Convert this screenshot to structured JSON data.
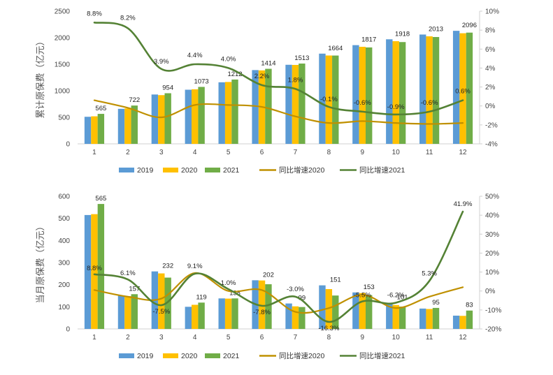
{
  "chart_data": [
    {
      "type": "bar",
      "ylabel": "累计原保费（亿元）",
      "ylim": [
        0,
        2500
      ],
      "y2lim": [
        -4,
        10
      ],
      "categories": [
        "1",
        "2",
        "3",
        "4",
        "5",
        "6",
        "7",
        "8",
        "9",
        "10",
        "11",
        "12"
      ],
      "y_ticks": [
        "0",
        "500",
        "1000",
        "1500",
        "2000",
        "2500"
      ],
      "y2_ticks": [
        "-4%",
        "-2%",
        "0%",
        "2%",
        "4%",
        "6%",
        "8%",
        "10%"
      ],
      "series": [
        {
          "name": "2019",
          "kind": "bar",
          "color": "#5B9BD5",
          "values": [
            510,
            660,
            930,
            1020,
            1160,
            1390,
            1490,
            1700,
            1860,
            1970,
            2060,
            2130
          ]
        },
        {
          "name": "2020",
          "kind": "bar",
          "color": "#FFC000",
          "values": [
            519,
            667,
            918,
            1028,
            1166,
            1384,
            1487,
            1665,
            1829,
            1935,
            2026,
            2084
          ]
        },
        {
          "name": "2021",
          "kind": "bar",
          "color": "#70AD47",
          "values": [
            565,
            722,
            954,
            1073,
            1212,
            1414,
            1513,
            1664,
            1817,
            1918,
            2013,
            2096
          ]
        },
        {
          "name": "同比增速2020",
          "kind": "line",
          "axis": "right",
          "color": "#BF9000",
          "values": [
            0.6,
            -0.2,
            -1.2,
            0.1,
            0.1,
            -0.1,
            -1.1,
            -1.8,
            -1.6,
            -1.8,
            -1.9,
            -1.8
          ]
        },
        {
          "name": "同比增速2021",
          "kind": "line",
          "axis": "right",
          "color": "#548235",
          "values": [
            8.8,
            8.2,
            3.9,
            4.4,
            4.0,
            2.2,
            1.8,
            -0.1,
            -0.6,
            -0.9,
            -0.6,
            0.6
          ]
        }
      ],
      "bar_labels": [
        "565",
        "722",
        "954",
        "1073",
        "1212",
        "1414",
        "1513",
        "1664",
        "1817",
        "1918",
        "2013",
        "2096"
      ],
      "line_labels": [
        "8.8%",
        "8.2%",
        "3.9%",
        "4.4%",
        "4.0%",
        "2.2%",
        "1.8%",
        "-0.1%",
        "-0.6%",
        "-0.9%",
        "-0.6%",
        "0.6%"
      ],
      "legend": [
        "2019",
        "2020",
        "2021",
        "同比增速2020",
        "同比增速2021"
      ],
      "legend_position": "bottom",
      "grid": false
    },
    {
      "type": "bar",
      "ylabel": "当月原保费（亿元）",
      "ylim": [
        0,
        600
      ],
      "y2lim": [
        -20,
        50
      ],
      "categories": [
        "1",
        "2",
        "3",
        "4",
        "5",
        "6",
        "7",
        "8",
        "9",
        "10",
        "11",
        "12"
      ],
      "y_ticks": [
        "0",
        "100",
        "200",
        "300",
        "400",
        "500",
        "600"
      ],
      "y2_ticks": [
        "-20%",
        "-10%",
        "0%",
        "10%",
        "20%",
        "30%",
        "40%",
        "50%"
      ],
      "series": [
        {
          "name": "2019",
          "kind": "bar",
          "color": "#5B9BD5",
          "values": [
            515,
            150,
            260,
            100,
            138,
            220,
            115,
            197,
            165,
            118,
            92,
            60
          ]
        },
        {
          "name": "2020",
          "kind": "bar",
          "color": "#FFC000",
          "values": [
            519,
            148,
            251,
            109,
            137,
            219,
            102,
            180,
            162,
            108,
            90,
            59
          ]
        },
        {
          "name": "2021",
          "kind": "bar",
          "color": "#70AD47",
          "values": [
            565,
            157,
            232,
            119,
            138,
            202,
            99,
            151,
            153,
            101,
            95,
            83
          ]
        },
        {
          "name": "同比增速2020",
          "kind": "line",
          "axis": "right",
          "color": "#BF9000",
          "values": [
            0.5,
            -3,
            -4,
            9.5,
            0,
            0.5,
            -11,
            -9,
            -2,
            -9,
            -3,
            2
          ]
        },
        {
          "name": "同比增速2021",
          "kind": "line",
          "axis": "right",
          "color": "#548235",
          "values": [
            8.8,
            6.1,
            -7.5,
            9.1,
            1.0,
            -7.8,
            -3.0,
            -16.3,
            -5.5,
            -6.2,
            5.3,
            41.9
          ]
        }
      ],
      "bar_labels": [
        "565",
        "157",
        "232",
        "119",
        "138",
        "202",
        "99",
        "151",
        "153",
        "101",
        "95",
        "83"
      ],
      "line_labels": [
        "8.8%",
        "6.1%",
        "-7.5%",
        "9.1%",
        "1.0%",
        "-7.8%",
        "-3.0%",
        "-16.3%",
        "-5.5%",
        "-6.2%",
        "5.3%",
        "41.9%"
      ],
      "legend": [
        "2019",
        "2020",
        "2021",
        "同比增速2020",
        "同比增速2021"
      ],
      "legend_position": "bottom",
      "grid": false
    }
  ]
}
